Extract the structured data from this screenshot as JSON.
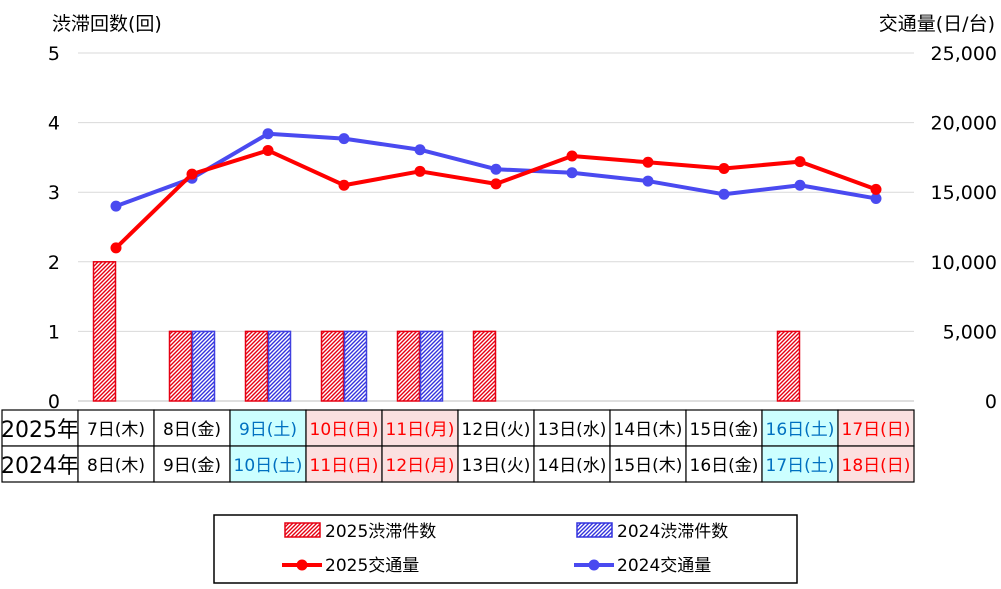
{
  "chart_data": {
    "type": "bar+line",
    "left_axis": {
      "label": "渋滞回数(回)",
      "range": [
        0,
        5
      ],
      "ticks": [
        "0",
        "1",
        "2",
        "3",
        "4",
        "5"
      ]
    },
    "right_axis": {
      "label": "交通量(日/台)",
      "range": [
        0,
        25000
      ],
      "ticks": [
        "0",
        "5,000",
        "10,000",
        "15,000",
        "20,000",
        "25,000"
      ]
    },
    "grid": "horizontal",
    "row_labels": [
      "2025年",
      "2024年"
    ],
    "dates_2025": [
      "7日(木)",
      "8日(金)",
      "9日(土)",
      "10日(日)",
      "11日(月)",
      "12日(火)",
      "13日(水)",
      "14日(木)",
      "15日(金)",
      "16日(土)",
      "17日(日)"
    ],
    "dates_2024": [
      "8日(木)",
      "9日(金)",
      "10日(土)",
      "11日(日)",
      "12日(月)",
      "13日(火)",
      "14日(水)",
      "15日(木)",
      "16日(金)",
      "17日(土)",
      "18日(日)"
    ],
    "day_types": [
      "weekday",
      "weekday",
      "sat",
      "hol",
      "hol",
      "weekday",
      "weekday",
      "weekday",
      "weekday",
      "sat",
      "hol"
    ],
    "series": [
      {
        "name": "2025渋滞件数",
        "kind": "bar",
        "axis": "left",
        "color": "#e60012",
        "values": [
          2,
          1,
          1,
          1,
          1,
          1,
          0,
          0,
          0,
          1,
          0
        ]
      },
      {
        "name": "2024渋滞件数",
        "kind": "bar",
        "axis": "left",
        "color": "#4040e0",
        "values": [
          0,
          1,
          1,
          1,
          1,
          0,
          0,
          0,
          0,
          0,
          0
        ]
      },
      {
        "name": "2025交通量",
        "kind": "line",
        "axis": "right",
        "color": "#ff0000",
        "values": [
          11000,
          16300,
          18000,
          15500,
          16500,
          15600,
          17600,
          17150,
          16700,
          17200,
          15200
        ]
      },
      {
        "name": "2024交通量",
        "kind": "line",
        "axis": "right",
        "color": "#4a4af0",
        "values": [
          14000,
          16000,
          19200,
          18850,
          18050,
          16650,
          16400,
          15800,
          14850,
          15500,
          14550
        ]
      }
    ],
    "legend": {
      "position": "bottom",
      "entries": [
        "2025渋滞件数",
        "2024渋滞件数",
        "2025交通量",
        "2024交通量"
      ]
    },
    "colors": {
      "sat_text": "#0070c0",
      "sat_bg": "#ccffff",
      "hol_text": "#ff0000",
      "hol_bg": "#fbe0e0",
      "grid": "#d9d9d9"
    }
  }
}
